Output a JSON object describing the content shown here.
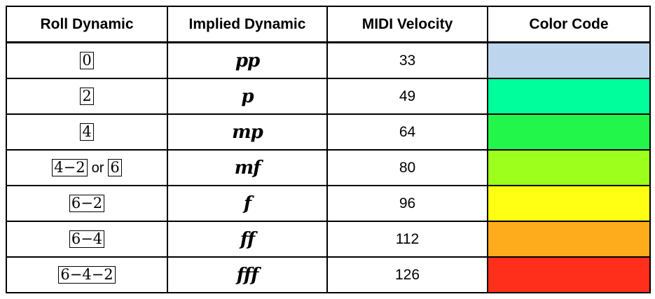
{
  "headers": {
    "roll": "Roll Dynamic",
    "implied": "Implied Dynamic",
    "velocity": "MIDI Velocity",
    "color": "Color Code"
  },
  "or_word": "or",
  "rows": [
    {
      "roll_a": "0",
      "roll_b": "",
      "implied": "pp",
      "velocity": "33",
      "color": "#bdd6ee"
    },
    {
      "roll_a": "2",
      "roll_b": "",
      "implied": "p",
      "velocity": "49",
      "color": "#00ff9c"
    },
    {
      "roll_a": "4",
      "roll_b": "",
      "implied": "mp",
      "velocity": "64",
      "color": "#22f64a"
    },
    {
      "roll_a": "4−2",
      "roll_b": "6",
      "implied": "mf",
      "velocity": "80",
      "color": "#9cff1c"
    },
    {
      "roll_a": "6−2",
      "roll_b": "",
      "implied": "f",
      "velocity": "96",
      "color": "#ffff14"
    },
    {
      "roll_a": "6−4",
      "roll_b": "",
      "implied": "ff",
      "velocity": "112",
      "color": "#ffac1c"
    },
    {
      "roll_a": "6−4−2",
      "roll_b": "",
      "implied": "fff",
      "velocity": "126",
      "color": "#ff2f1c"
    }
  ]
}
